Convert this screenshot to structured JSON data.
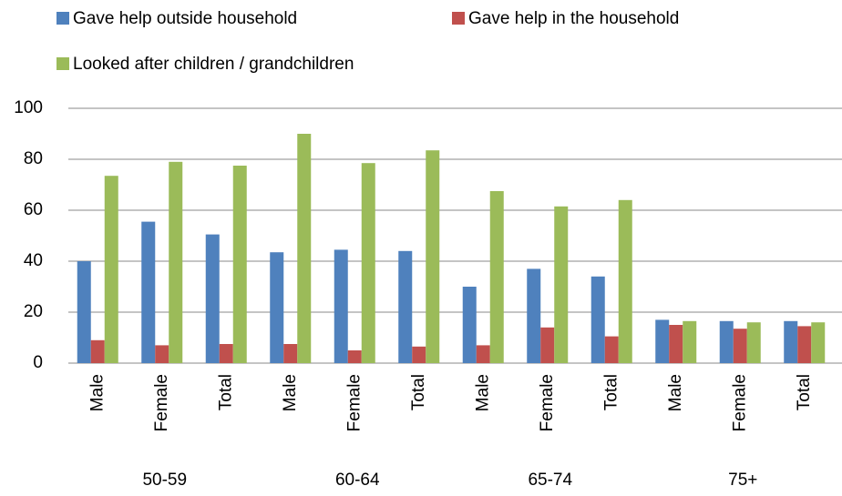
{
  "chart_data": {
    "type": "bar",
    "categories": [
      "Male",
      "Female",
      "Total",
      "Male",
      "Female",
      "Total",
      "Male",
      "Female",
      "Total",
      "Male",
      "Female",
      "Total"
    ],
    "category_groups": [
      "50-59",
      "60-64",
      "65-74",
      "75+"
    ],
    "series": [
      {
        "name": "Gave help outside household",
        "color": "#4f81bd",
        "values": [
          40,
          55.5,
          50.5,
          43.5,
          44.5,
          44,
          30,
          37,
          34,
          17,
          16.5,
          16.5
        ]
      },
      {
        "name": "Gave help in the household",
        "color": "#c0504d",
        "values": [
          9,
          7,
          7.5,
          7.5,
          5,
          6.5,
          7,
          14,
          10.5,
          15,
          13.5,
          14.5
        ]
      },
      {
        "name": "Looked after children / grandchildren",
        "color": "#9bbb59",
        "values": [
          73.5,
          79,
          77.5,
          90,
          78.5,
          83.5,
          67.5,
          61.5,
          64,
          16.5,
          16,
          16
        ]
      }
    ],
    "ylim": [
      0,
      100
    ],
    "yticks": [
      0,
      20,
      40,
      60,
      80,
      100
    ],
    "grid": true
  }
}
